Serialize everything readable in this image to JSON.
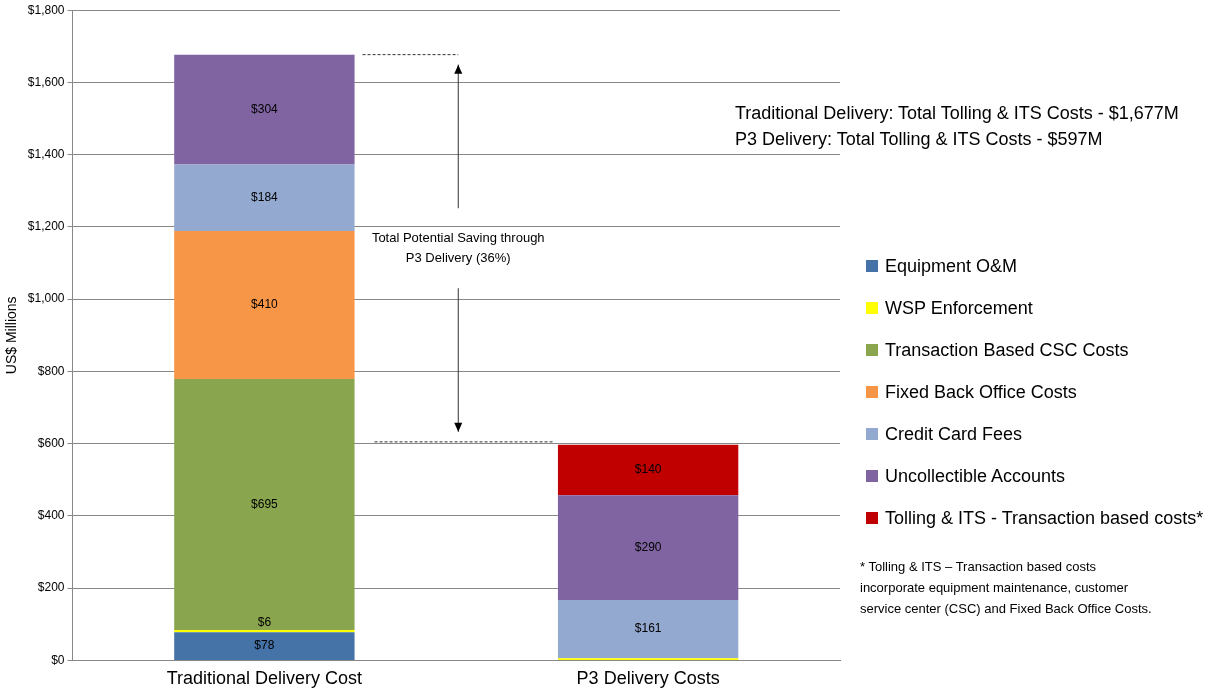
{
  "chart_data": {
    "type": "bar",
    "stacked": true,
    "categories": [
      "Traditional Delivery Cost",
      "P3 Delivery Costs"
    ],
    "ylabel": "US$ Millions",
    "ylim": [
      0,
      1800
    ],
    "yticks": [
      {
        "value": 0,
        "label": "$0"
      },
      {
        "value": 200,
        "label": "$200"
      },
      {
        "value": 400,
        "label": "$400"
      },
      {
        "value": 600,
        "label": "$600"
      },
      {
        "value": 800,
        "label": "$800"
      },
      {
        "value": 1000,
        "label": "$1,000"
      },
      {
        "value": 1200,
        "label": "$1,200"
      },
      {
        "value": 1400,
        "label": "$1,400"
      },
      {
        "value": 1600,
        "label": "$1,600"
      },
      {
        "value": 1800,
        "label": "$1,800"
      }
    ],
    "grid": "y",
    "legend": "right",
    "series": [
      {
        "name": "Equipment O&M",
        "color": "#4572a7",
        "values": [
          78,
          null
        ],
        "value_labels": [
          "$78",
          null
        ]
      },
      {
        "name": "WSP Enforcement",
        "color": "#ffff00",
        "values": [
          6,
          6
        ],
        "value_labels": [
          "$6",
          null
        ]
      },
      {
        "name": "Transaction Based CSC Costs",
        "color": "#89a54e",
        "values": [
          695,
          null
        ],
        "value_labels": [
          "$695",
          null
        ]
      },
      {
        "name": "Fixed Back Office Costs",
        "color": "#f79646",
        "values": [
          410,
          null
        ],
        "value_labels": [
          "$410",
          null
        ]
      },
      {
        "name": "Credit Card Fees",
        "color": "#93a9cf",
        "values": [
          184,
          161
        ],
        "value_labels": [
          "$184",
          "$161"
        ]
      },
      {
        "name": "Uncollectible Accounts",
        "color": "#8064a2",
        "values": [
          304,
          290
        ],
        "value_labels": [
          "$304",
          "$290"
        ]
      },
      {
        "name": "Tolling & ITS - Transaction based costs*",
        "color": "#c00000",
        "values": [
          null,
          140
        ],
        "value_labels": [
          null,
          "$140"
        ]
      }
    ],
    "ref_lines": [
      {
        "axis": "y",
        "value": 1677,
        "line_style": "dashed"
      },
      {
        "axis": "y",
        "value": 605,
        "line_style": "dashed"
      }
    ],
    "annotations": [
      "Traditional Delivery: Total Tolling & ITS Costs - $1,677M",
      "P3 Delivery: Total Tolling & ITS Costs - $597M",
      "Total Potential Saving through P3 Delivery (36%)",
      "* Tolling & ITS – Transaction based costs incorporate equipment maintenance, customer service center (CSC) and Fixed Back Office Costs."
    ]
  }
}
